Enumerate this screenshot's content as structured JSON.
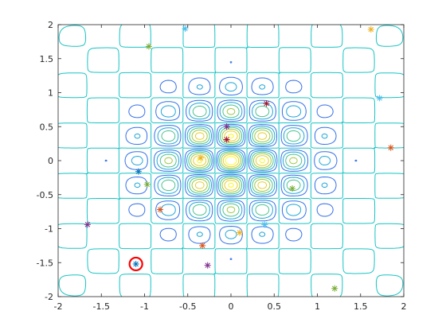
{
  "chart_data": {
    "type": "contour",
    "title": "",
    "xlabel": "",
    "ylabel": "",
    "xlim": [
      -2,
      2
    ],
    "ylim": [
      -2,
      2
    ],
    "xticks": [
      -2,
      -1.5,
      -1,
      -0.5,
      0,
      0.5,
      1,
      1.5,
      2
    ],
    "yticks": [
      -2,
      -1.5,
      -1,
      -0.5,
      0,
      0.5,
      1,
      1.5,
      2
    ],
    "xtick_labels": [
      "-2",
      "-1.5",
      "-1",
      "-0.5",
      "0",
      "0.5",
      "1",
      "1.5",
      "2"
    ],
    "ytick_labels": [
      "-2",
      "-1.5",
      "-1",
      "-0.5",
      "0",
      "0.5",
      "1",
      "1.5",
      "2"
    ],
    "grid": false,
    "contour_function": "cos(pi*x/0.37)*cos(pi*y/0.37)*exp(-(x^2+y^2)/1.1)",
    "colormap": [
      "#3e26a8",
      "#2f7df5",
      "#17b9c9",
      "#7ccb52",
      "#e6c22c",
      "#f9fb15"
    ],
    "markers": [
      {
        "x": -0.53,
        "y": 1.94,
        "color": "#4dbeee"
      },
      {
        "x": 1.62,
        "y": 1.93,
        "color": "#edb120"
      },
      {
        "x": -0.95,
        "y": 1.68,
        "color": "#77ac30"
      },
      {
        "x": 1.72,
        "y": 0.92,
        "color": "#4dbeee"
      },
      {
        "x": 0.41,
        "y": 0.84,
        "color": "#a2142f"
      },
      {
        "x": -0.05,
        "y": 0.5,
        "color": "#7e2f8e"
      },
      {
        "x": -0.05,
        "y": 0.31,
        "color": "#a2142f"
      },
      {
        "x": 1.85,
        "y": 0.19,
        "color": "#d95319"
      },
      {
        "x": -0.35,
        "y": 0.04,
        "color": "#edb120"
      },
      {
        "x": -1.07,
        "y": -0.16,
        "color": "#0072bd"
      },
      {
        "x": -0.97,
        "y": -0.35,
        "color": "#77ac30"
      },
      {
        "x": 0.71,
        "y": -0.41,
        "color": "#77ac30"
      },
      {
        "x": -0.82,
        "y": -0.72,
        "color": "#d95319"
      },
      {
        "x": -1.66,
        "y": -0.94,
        "color": "#7e2f8e"
      },
      {
        "x": 0.39,
        "y": -0.94,
        "color": "#4dbeee"
      },
      {
        "x": 0.1,
        "y": -1.06,
        "color": "#edb120"
      },
      {
        "x": -0.33,
        "y": -1.25,
        "color": "#d95319"
      },
      {
        "x": -1.1,
        "y": -1.52,
        "color": "#0072bd"
      },
      {
        "x": -0.27,
        "y": -1.54,
        "color": "#7e2f8e"
      },
      {
        "x": 1.2,
        "y": -1.88,
        "color": "#77ac30"
      }
    ],
    "highlight": {
      "x": -1.1,
      "y": -1.52,
      "color": "#ff0000"
    }
  }
}
